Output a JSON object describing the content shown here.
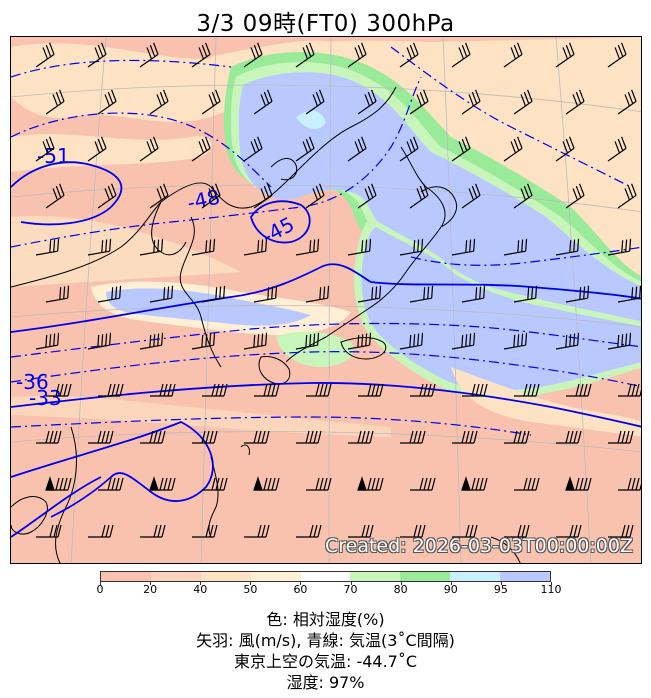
{
  "title": "3/3  09時(FT0)     300hPa",
  "created_stamp": "Created: 2026-03-03T00:00:00Z",
  "contour_labels": [
    "-51",
    "-48",
    "-45",
    "-36",
    "-33"
  ],
  "colorbar": {
    "ticks": [
      "0",
      "20",
      "40",
      "50",
      "60",
      "70",
      "80",
      "90",
      "95",
      "110"
    ],
    "colors": [
      "#f9c2ae",
      "#fbd3bd",
      "#fde2c3",
      "#fff0d5",
      "#ffffff",
      "#c8f5b9",
      "#99ea99",
      "#c8f0ff",
      "#b9c9ff"
    ]
  },
  "legend": {
    "line1": "色: 相対湿度(%)",
    "line2": "矢羽: 風(m/s),  青線: 気温(3˚C間隔)",
    "line3": "東京上空の気温: -44.7˚C",
    "line4": "湿度: 97%"
  },
  "colors": {
    "contour": "#0000ee",
    "coast": "#000000",
    "dry": "#f9c2ae",
    "moist": "#b9c9ff",
    "green": "#a8eea8"
  }
}
